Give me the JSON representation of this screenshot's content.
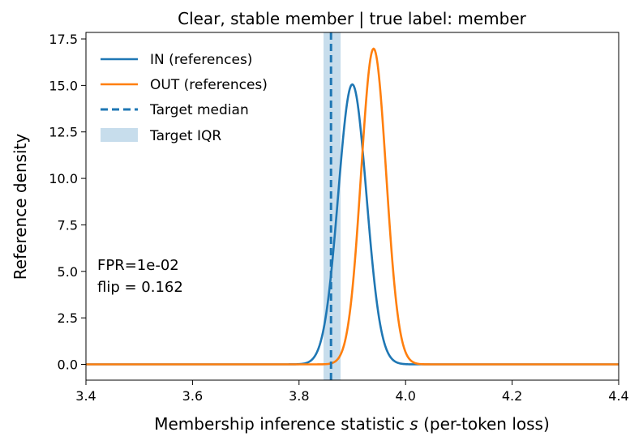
{
  "chart_data": {
    "type": "line",
    "title": "Clear, stable member | true label: member",
    "xlabel_main": "Membership inference statistic ",
    "xlabel_symbol": "s",
    "xlabel_suffix": "  (per-token loss)",
    "ylabel": "Reference density",
    "xlim": [
      3.4,
      4.4
    ],
    "ylim": [
      -0.85,
      17.85
    ],
    "x_ticks": [
      3.4,
      3.6,
      3.8,
      4.0,
      4.2,
      4.4
    ],
    "x_tick_labels": [
      "3.4",
      "3.6",
      "3.8",
      "4.0",
      "4.2",
      "4.4"
    ],
    "y_ticks": [
      0.0,
      2.5,
      5.0,
      7.5,
      10.0,
      12.5,
      15.0,
      17.5
    ],
    "y_tick_labels": [
      "0.0",
      "2.5",
      "5.0",
      "7.5",
      "10.0",
      "12.5",
      "15.0",
      "17.5"
    ],
    "series": [
      {
        "name": "IN (references)",
        "kind": "gaussian",
        "mean": 3.9,
        "sd": 0.0265,
        "color": "#1f77b4"
      },
      {
        "name": "OUT (references)",
        "kind": "gaussian",
        "mean": 3.94,
        "sd": 0.0235,
        "color": "#ff7f0e"
      }
    ],
    "target_median": {
      "name": "Target median",
      "x": 3.86,
      "color": "#1f77b4"
    },
    "target_iqr": {
      "name": "Target IQR",
      "x0": 3.846,
      "x1": 3.878,
      "color": "#1f77b4"
    },
    "legend_position": "upper-left",
    "annotations": {
      "fpr": "FPR=1e-02",
      "flip": "flip = 0.162"
    }
  }
}
